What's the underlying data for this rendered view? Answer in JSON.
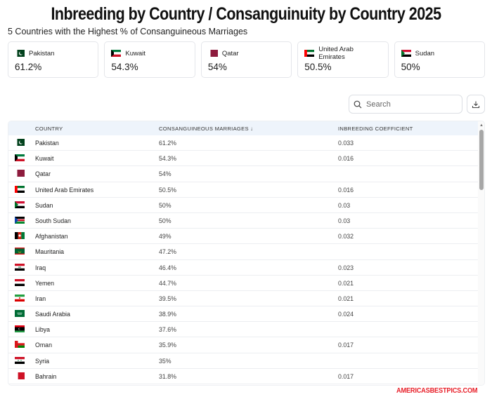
{
  "title": "Inbreeding by Country / Consanguinuity by Country 2025",
  "subtitle": "5 Countries with the Highest % of Consanguineous Marriages",
  "top_cards": [
    {
      "name": "Pakistan",
      "value": "61.2%",
      "flag": "pakistan"
    },
    {
      "name": "Kuwait",
      "value": "54.3%",
      "flag": "kuwait"
    },
    {
      "name": "Qatar",
      "value": "54%",
      "flag": "qatar"
    },
    {
      "name": "United Arab Emirates",
      "value": "50.5%",
      "flag": "uae"
    },
    {
      "name": "Sudan",
      "value": "50%",
      "flag": "sudan"
    }
  ],
  "search": {
    "placeholder": "Search",
    "icon": "search-icon"
  },
  "download": {
    "icon": "download-icon"
  },
  "table": {
    "headers": {
      "country": "COUNTRY",
      "consanguineous": "CONSANGUINEOUS MARRIAGES ↓",
      "inbreeding": "INBREEDING COEFFICIENT"
    },
    "rows": [
      {
        "country": "Pakistan",
        "cons": "61.2%",
        "inb": "0.033",
        "flag": "pakistan"
      },
      {
        "country": "Kuwait",
        "cons": "54.3%",
        "inb": "0.016",
        "flag": "kuwait"
      },
      {
        "country": "Qatar",
        "cons": "54%",
        "inb": "",
        "flag": "qatar"
      },
      {
        "country": "United Arab Emirates",
        "cons": "50.5%",
        "inb": "0.016",
        "flag": "uae"
      },
      {
        "country": "Sudan",
        "cons": "50%",
        "inb": "0.03",
        "flag": "sudan"
      },
      {
        "country": "South Sudan",
        "cons": "50%",
        "inb": "0.03",
        "flag": "south-sudan"
      },
      {
        "country": "Afghanistan",
        "cons": "49%",
        "inb": "0.032",
        "flag": "afghanistan"
      },
      {
        "country": "Mauritania",
        "cons": "47.2%",
        "inb": "",
        "flag": "mauritania"
      },
      {
        "country": "Iraq",
        "cons": "46.4%",
        "inb": "0.023",
        "flag": "iraq"
      },
      {
        "country": "Yemen",
        "cons": "44.7%",
        "inb": "0.021",
        "flag": "yemen"
      },
      {
        "country": "Iran",
        "cons": "39.5%",
        "inb": "0.021",
        "flag": "iran"
      },
      {
        "country": "Saudi Arabia",
        "cons": "38.9%",
        "inb": "0.024",
        "flag": "saudi-arabia"
      },
      {
        "country": "Libya",
        "cons": "37.6%",
        "inb": "",
        "flag": "libya"
      },
      {
        "country": "Oman",
        "cons": "35.9%",
        "inb": "0.017",
        "flag": "oman"
      },
      {
        "country": "Syria",
        "cons": "35%",
        "inb": "",
        "flag": "syria"
      },
      {
        "country": "Bahrain",
        "cons": "31.8%",
        "inb": "0.017",
        "flag": "bahrain"
      }
    ]
  },
  "watermark": "AMERICASBESTPICS.COM",
  "colors": {
    "accent": "#2f6fd6",
    "header_bg": "#eef4fb",
    "watermark": "#e8202a"
  }
}
